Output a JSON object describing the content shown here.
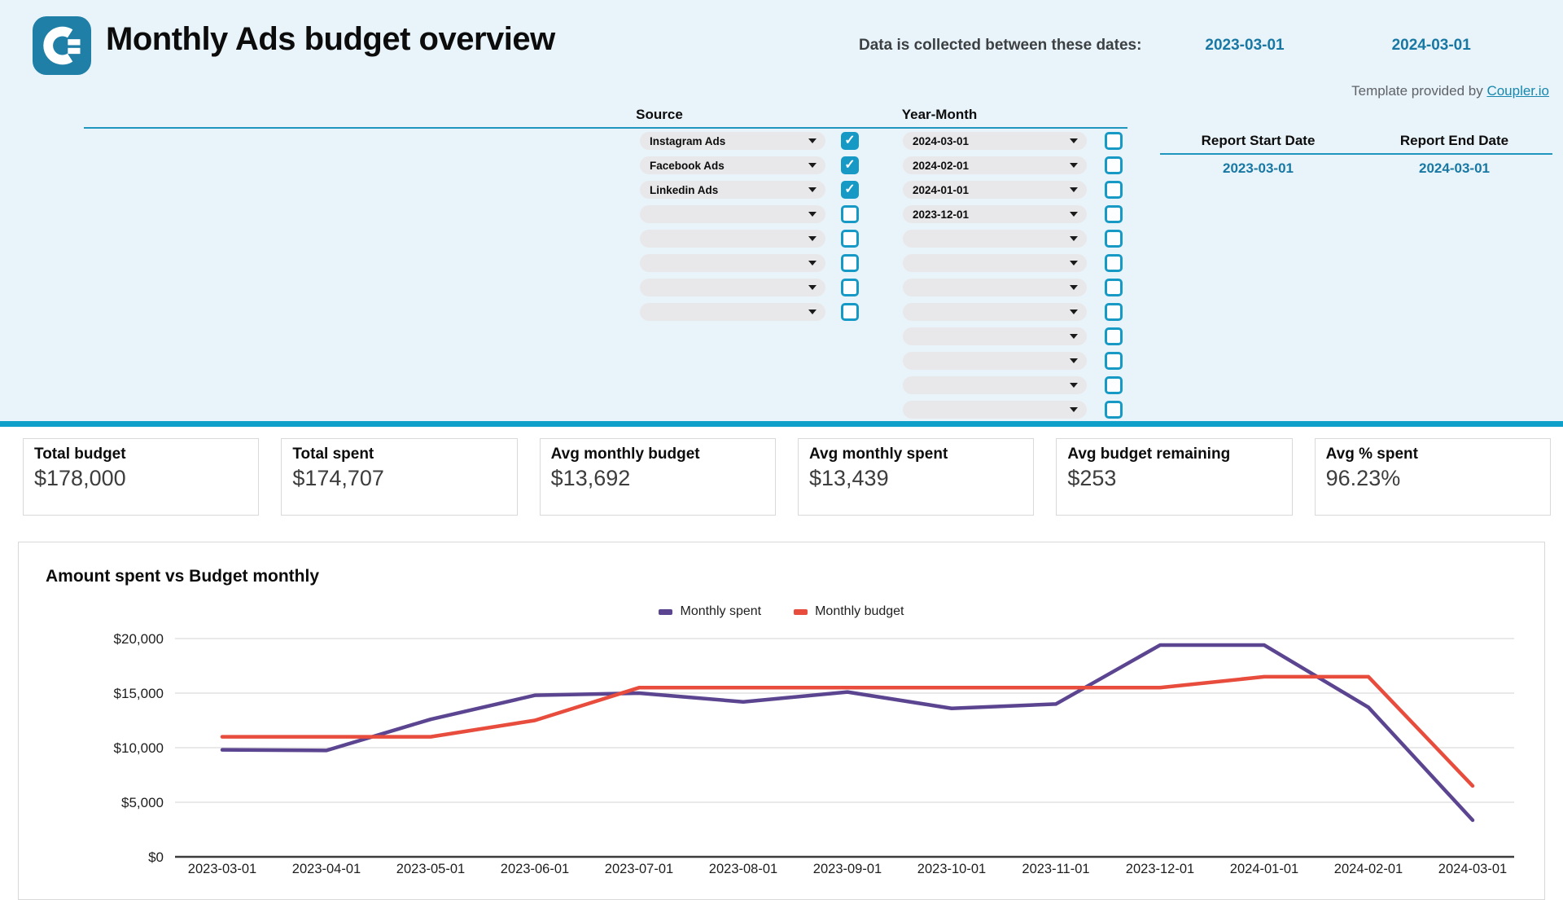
{
  "header": {
    "title": "Monthly Ads budget overview",
    "collected_label": "Data is collected between these dates:",
    "collected_start": "2023-03-01",
    "collected_end": "2024-03-01",
    "template_label": "Template provided by ",
    "template_link": "Coupler.io"
  },
  "filters": {
    "source": {
      "header": "Source",
      "rows": [
        {
          "label": "Instagram Ads",
          "checked": true
        },
        {
          "label": "Facebook Ads",
          "checked": true
        },
        {
          "label": "Linkedin Ads",
          "checked": true
        },
        {
          "label": "",
          "checked": false
        },
        {
          "label": "",
          "checked": false
        },
        {
          "label": "",
          "checked": false
        },
        {
          "label": "",
          "checked": false
        },
        {
          "label": "",
          "checked": false
        }
      ]
    },
    "year_month": {
      "header": "Year-Month",
      "rows": [
        {
          "label": "2024-03-01",
          "checked": false
        },
        {
          "label": "2024-02-01",
          "checked": false
        },
        {
          "label": "2024-01-01",
          "checked": false
        },
        {
          "label": "2023-12-01",
          "checked": false
        },
        {
          "label": "",
          "checked": false
        },
        {
          "label": "",
          "checked": false
        },
        {
          "label": "",
          "checked": false
        },
        {
          "label": "",
          "checked": false
        },
        {
          "label": "",
          "checked": false
        },
        {
          "label": "",
          "checked": false
        },
        {
          "label": "",
          "checked": false
        },
        {
          "label": "",
          "checked": false
        }
      ]
    },
    "report": {
      "start_label": "Report Start Date",
      "end_label": "Report End Date",
      "start_value": "2023-03-01",
      "end_value": "2024-03-01"
    }
  },
  "kpis": [
    {
      "label": "Total budget",
      "value": "$178,000"
    },
    {
      "label": "Total spent",
      "value": "$174,707"
    },
    {
      "label": "Avg monthly budget",
      "value": "$13,692"
    },
    {
      "label": "Avg monthly spent",
      "value": "$13,439"
    },
    {
      "label": "Avg budget remaining",
      "value": "$253"
    },
    {
      "label": "Avg % spent",
      "value": "96.23%"
    }
  ],
  "chart_data": {
    "type": "line",
    "title": "Amount spent vs Budget monthly",
    "x": [
      "2023-03-01",
      "2023-04-01",
      "2023-05-01",
      "2023-06-01",
      "2023-07-01",
      "2023-08-01",
      "2023-09-01",
      "2023-10-01",
      "2023-11-01",
      "2023-12-01",
      "2024-01-01",
      "2024-02-01",
      "2024-03-01"
    ],
    "series": [
      {
        "name": "Monthly spent",
        "color": "#5c4590",
        "values": [
          9800,
          9750,
          12600,
          14800,
          15000,
          14200,
          15100,
          13600,
          14000,
          19400,
          19400,
          13700,
          3357
        ]
      },
      {
        "name": "Monthly budget",
        "color": "#e84c3d",
        "values": [
          11000,
          11000,
          11000,
          12500,
          15500,
          15500,
          15500,
          15500,
          15500,
          15500,
          16500,
          16500,
          6500
        ]
      }
    ],
    "ylim": [
      0,
      20000
    ],
    "yticks": [
      0,
      5000,
      10000,
      15000,
      20000
    ],
    "ytick_labels": [
      "$0",
      "$5,000",
      "$10,000",
      "$15,000",
      "$20,000"
    ],
    "xlabel": "",
    "ylabel": "",
    "grid": true,
    "legend_position": "top-center"
  },
  "colors": {
    "accent_teal": "#1799c5",
    "teal_text": "#1878a3",
    "divider": "#0fa0ca",
    "top_background": "#e9f4fa",
    "spent_line": "#5c4590",
    "budget_line": "#e84c3d"
  }
}
